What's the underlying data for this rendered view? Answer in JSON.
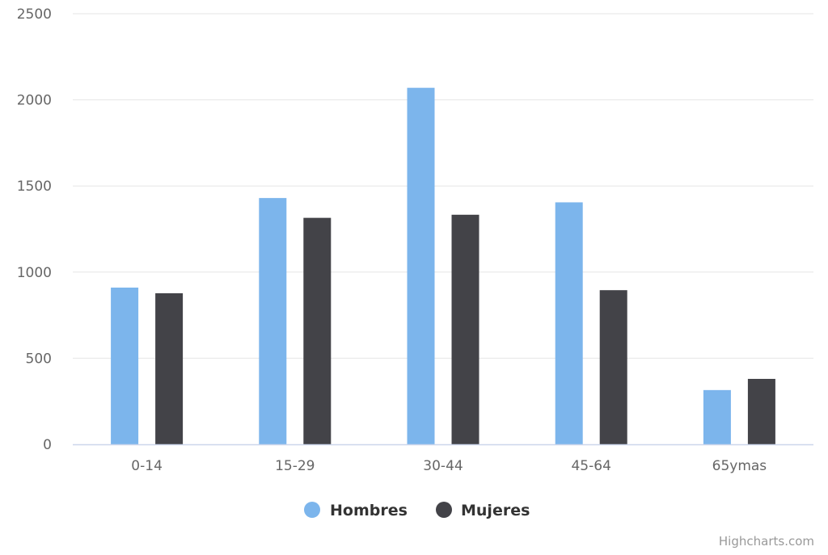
{
  "chart_data": {
    "type": "bar",
    "title": "",
    "xlabel": "",
    "ylabel": "",
    "categories": [
      "0-14",
      "15-29",
      "30-44",
      "45-64",
      "65ymas"
    ],
    "series": [
      {
        "name": "Hombres",
        "color": "#7cb5ec",
        "values": [
          910,
          1430,
          2070,
          1405,
          315
        ]
      },
      {
        "name": "Mujeres",
        "color": "#434348",
        "values": [
          877,
          1315,
          1333,
          895,
          380
        ]
      }
    ],
    "ylim": [
      0,
      2500
    ],
    "yticks": [
      0,
      500,
      1000,
      1500,
      2000,
      2500
    ],
    "grid": true,
    "legend_position": "bottom-center"
  },
  "credits": "Highcharts.com",
  "colors": {
    "gridline": "#e6e6e6",
    "axis_line": "#ccd6eb",
    "tick_text": "#666666"
  }
}
